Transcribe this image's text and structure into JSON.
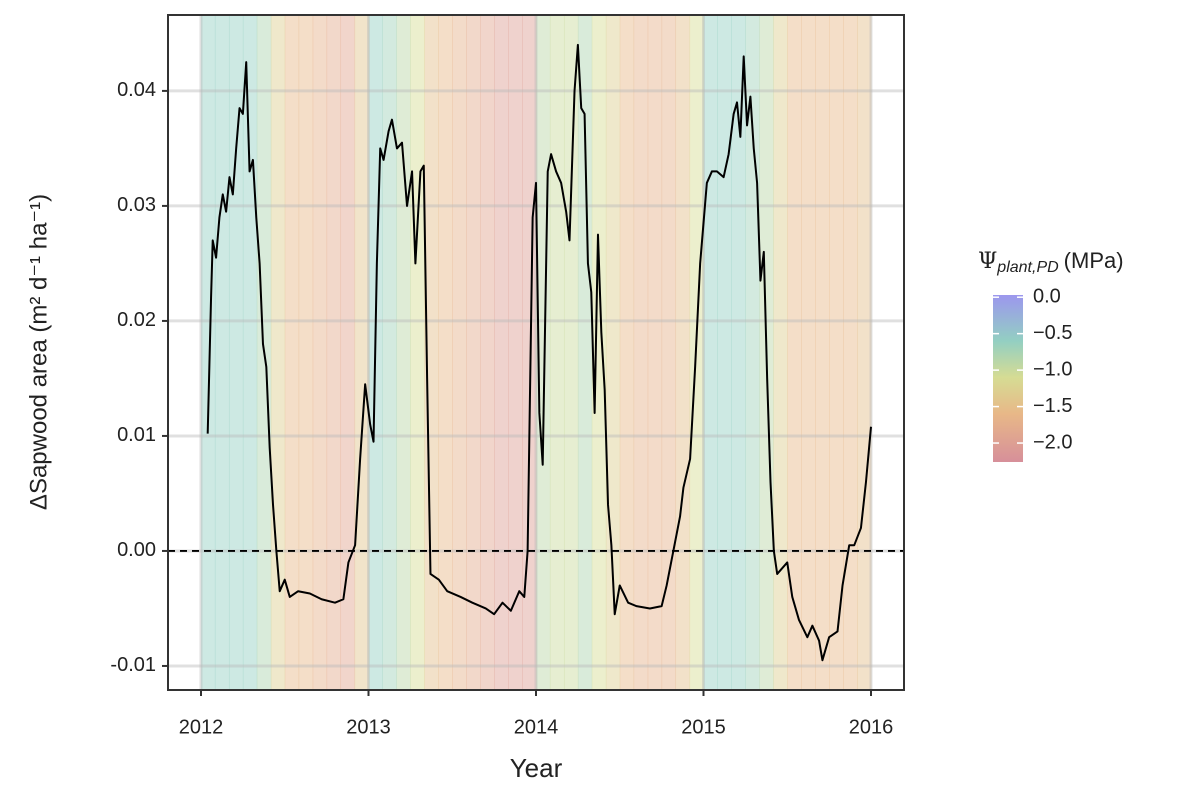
{
  "chart_data": {
    "type": "line",
    "x_label": "Year",
    "y_label": "ΔSapwood area (m² d⁻¹ ha⁻¹)",
    "xlim": [
      2011.803,
      2016.197
    ],
    "ylim": [
      -0.01209,
      0.0466
    ],
    "xticks": [
      2012,
      2013,
      2014,
      2015,
      2016
    ],
    "yticks": [
      -0.01,
      {
        "value": 0,
        "label": "0.00"
      },
      0.01,
      0.02,
      0.03,
      0.04
    ],
    "grid": true,
    "hline": 0,
    "series": [
      {
        "color": "#000000",
        "x": [
          2012.04,
          2012.06,
          2012.07,
          2012.09,
          2012.11,
          2012.13,
          2012.15,
          2012.17,
          2012.19,
          2012.21,
          2012.23,
          2012.25,
          2012.27,
          2012.29,
          2012.31,
          2012.33,
          2012.35,
          2012.37,
          2012.39,
          2012.41,
          2012.43,
          2012.45,
          2012.47,
          2012.5,
          2012.53,
          2012.58,
          2012.65,
          2012.72,
          2012.8,
          2012.85,
          2012.88,
          2012.92,
          2012.95,
          2012.98,
          2013.01,
          2013.03,
          2013.05,
          2013.07,
          2013.09,
          2013.12,
          2013.14,
          2013.17,
          2013.2,
          2013.23,
          2013.26,
          2013.28,
          2013.31,
          2013.33,
          2013.35,
          2013.37,
          2013.42,
          2013.47,
          2013.55,
          2013.62,
          2013.7,
          2013.75,
          2013.8,
          2013.85,
          2013.9,
          2013.93,
          2013.95,
          2013.98,
          2014.0,
          2014.02,
          2014.04,
          2014.07,
          2014.09,
          2014.12,
          2014.15,
          2014.18,
          2014.2,
          2014.23,
          2014.25,
          2014.27,
          2014.29,
          2014.31,
          2014.33,
          2014.35,
          2014.37,
          2014.39,
          2014.41,
          2014.43,
          2014.45,
          2014.47,
          2014.5,
          2014.55,
          2014.6,
          2014.68,
          2014.75,
          2014.78,
          2014.82,
          2014.86,
          2014.88,
          2014.92,
          2014.95,
          2014.98,
          2015.02,
          2015.05,
          2015.08,
          2015.12,
          2015.15,
          2015.18,
          2015.2,
          2015.22,
          2015.24,
          2015.26,
          2015.28,
          2015.3,
          2015.32,
          2015.34,
          2015.36,
          2015.38,
          2015.4,
          2015.42,
          2015.44,
          2015.47,
          2015.5,
          2015.53,
          2015.57,
          2015.62,
          2015.65,
          2015.69,
          2015.71,
          2015.75,
          2015.8,
          2015.83,
          2015.87,
          2015.9,
          2015.94,
          2015.97,
          2016.0
        ],
        "values": [
          0.0102,
          0.022,
          0.027,
          0.0255,
          0.029,
          0.031,
          0.0295,
          0.0325,
          0.031,
          0.035,
          0.0385,
          0.038,
          0.0425,
          0.033,
          0.034,
          0.029,
          0.025,
          0.018,
          0.016,
          0.009,
          0.004,
          0.0,
          -0.0035,
          -0.0025,
          -0.004,
          -0.0035,
          -0.0037,
          -0.0042,
          -0.0045,
          -0.0042,
          -0.001,
          0.0005,
          0.008,
          0.0145,
          0.011,
          0.0095,
          0.025,
          0.035,
          0.034,
          0.0365,
          0.0375,
          0.035,
          0.0355,
          0.03,
          0.033,
          0.025,
          0.033,
          0.0335,
          0.015,
          -0.002,
          -0.0025,
          -0.0035,
          -0.004,
          -0.0045,
          -0.005,
          -0.0055,
          -0.0045,
          -0.0052,
          -0.0035,
          -0.004,
          0.0,
          0.029,
          0.032,
          0.012,
          0.0075,
          0.033,
          0.0345,
          0.033,
          0.032,
          0.0295,
          0.027,
          0.04,
          0.044,
          0.0385,
          0.038,
          0.025,
          0.0225,
          0.012,
          0.0275,
          0.019,
          0.014,
          0.004,
          0.0005,
          -0.0055,
          -0.003,
          -0.0045,
          -0.0048,
          -0.005,
          -0.0048,
          -0.003,
          0.0,
          0.003,
          0.0055,
          0.008,
          0.016,
          0.025,
          0.032,
          0.033,
          0.033,
          0.0325,
          0.0345,
          0.038,
          0.039,
          0.036,
          0.043,
          0.037,
          0.0395,
          0.035,
          0.032,
          0.0235,
          0.026,
          0.015,
          0.006,
          0.0,
          -0.002,
          -0.0015,
          -0.001,
          -0.004,
          -0.006,
          -0.0075,
          -0.0065,
          -0.0078,
          -0.0095,
          -0.0075,
          -0.007,
          -0.003,
          0.0005,
          0.0005,
          0.002,
          0.006,
          0.0108
        ]
      }
    ],
    "background": {
      "bins": [
        2012,
        2012.083,
        2012.167,
        2012.25,
        2012.333,
        2012.417,
        2012.5,
        2012.583,
        2012.667,
        2012.75,
        2012.833,
        2012.917,
        2013,
        2013.083,
        2013.167,
        2013.25,
        2013.333,
        2013.417,
        2013.5,
        2013.583,
        2013.667,
        2013.75,
        2013.833,
        2013.917,
        2014,
        2014.083,
        2014.167,
        2014.25,
        2014.333,
        2014.417,
        2014.5,
        2014.583,
        2014.667,
        2014.75,
        2014.833,
        2014.917,
        2015,
        2015.083,
        2015.167,
        2015.25,
        2015.333,
        2015.417,
        2015.5,
        2015.583,
        2015.667,
        2015.75,
        2015.833,
        2015.917,
        2016
      ],
      "values": [
        -0.6,
        -0.6,
        -0.6,
        -0.6,
        -0.8,
        -1.3,
        -1.6,
        -1.6,
        -1.7,
        -1.8,
        -1.9,
        -1.4,
        -0.6,
        -0.7,
        -0.9,
        -1.1,
        -1.5,
        -1.6,
        -1.7,
        -1.8,
        -1.9,
        -2.0,
        -2.0,
        -2.0,
        -0.9,
        -1.0,
        -1.0,
        -0.8,
        -1.1,
        -1.3,
        -1.6,
        -1.7,
        -1.7,
        -1.7,
        -1.5,
        -1.1,
        -0.6,
        -0.6,
        -0.6,
        -0.7,
        -0.9,
        -1.3,
        -1.6,
        -1.6,
        -1.6,
        -1.6,
        -1.6,
        -1.5
      ],
      "opacity": 0.35
    },
    "legend": {
      "symbol": "Ψ",
      "subscript": "plant,PD",
      "unit": "(MPa)",
      "clim": [
        -2.26,
        0.03
      ],
      "ticks": [
        {
          "value": 0,
          "label": "0.0"
        },
        {
          "value": -0.5,
          "label": "−0.5"
        },
        {
          "value": -1,
          "label": "−1.0"
        },
        {
          "value": -1.5,
          "label": "−1.5"
        },
        {
          "value": -2,
          "label": "−2.0"
        }
      ],
      "colorscale": [
        {
          "value": -2.26,
          "color": "#c96a78"
        },
        {
          "value": -1.6,
          "color": "#e0a060"
        },
        {
          "value": -1.1,
          "color": "#c8d070"
        },
        {
          "value": -0.6,
          "color": "#6fbfae"
        },
        {
          "value": 0.03,
          "color": "#7b74e8"
        }
      ]
    }
  }
}
